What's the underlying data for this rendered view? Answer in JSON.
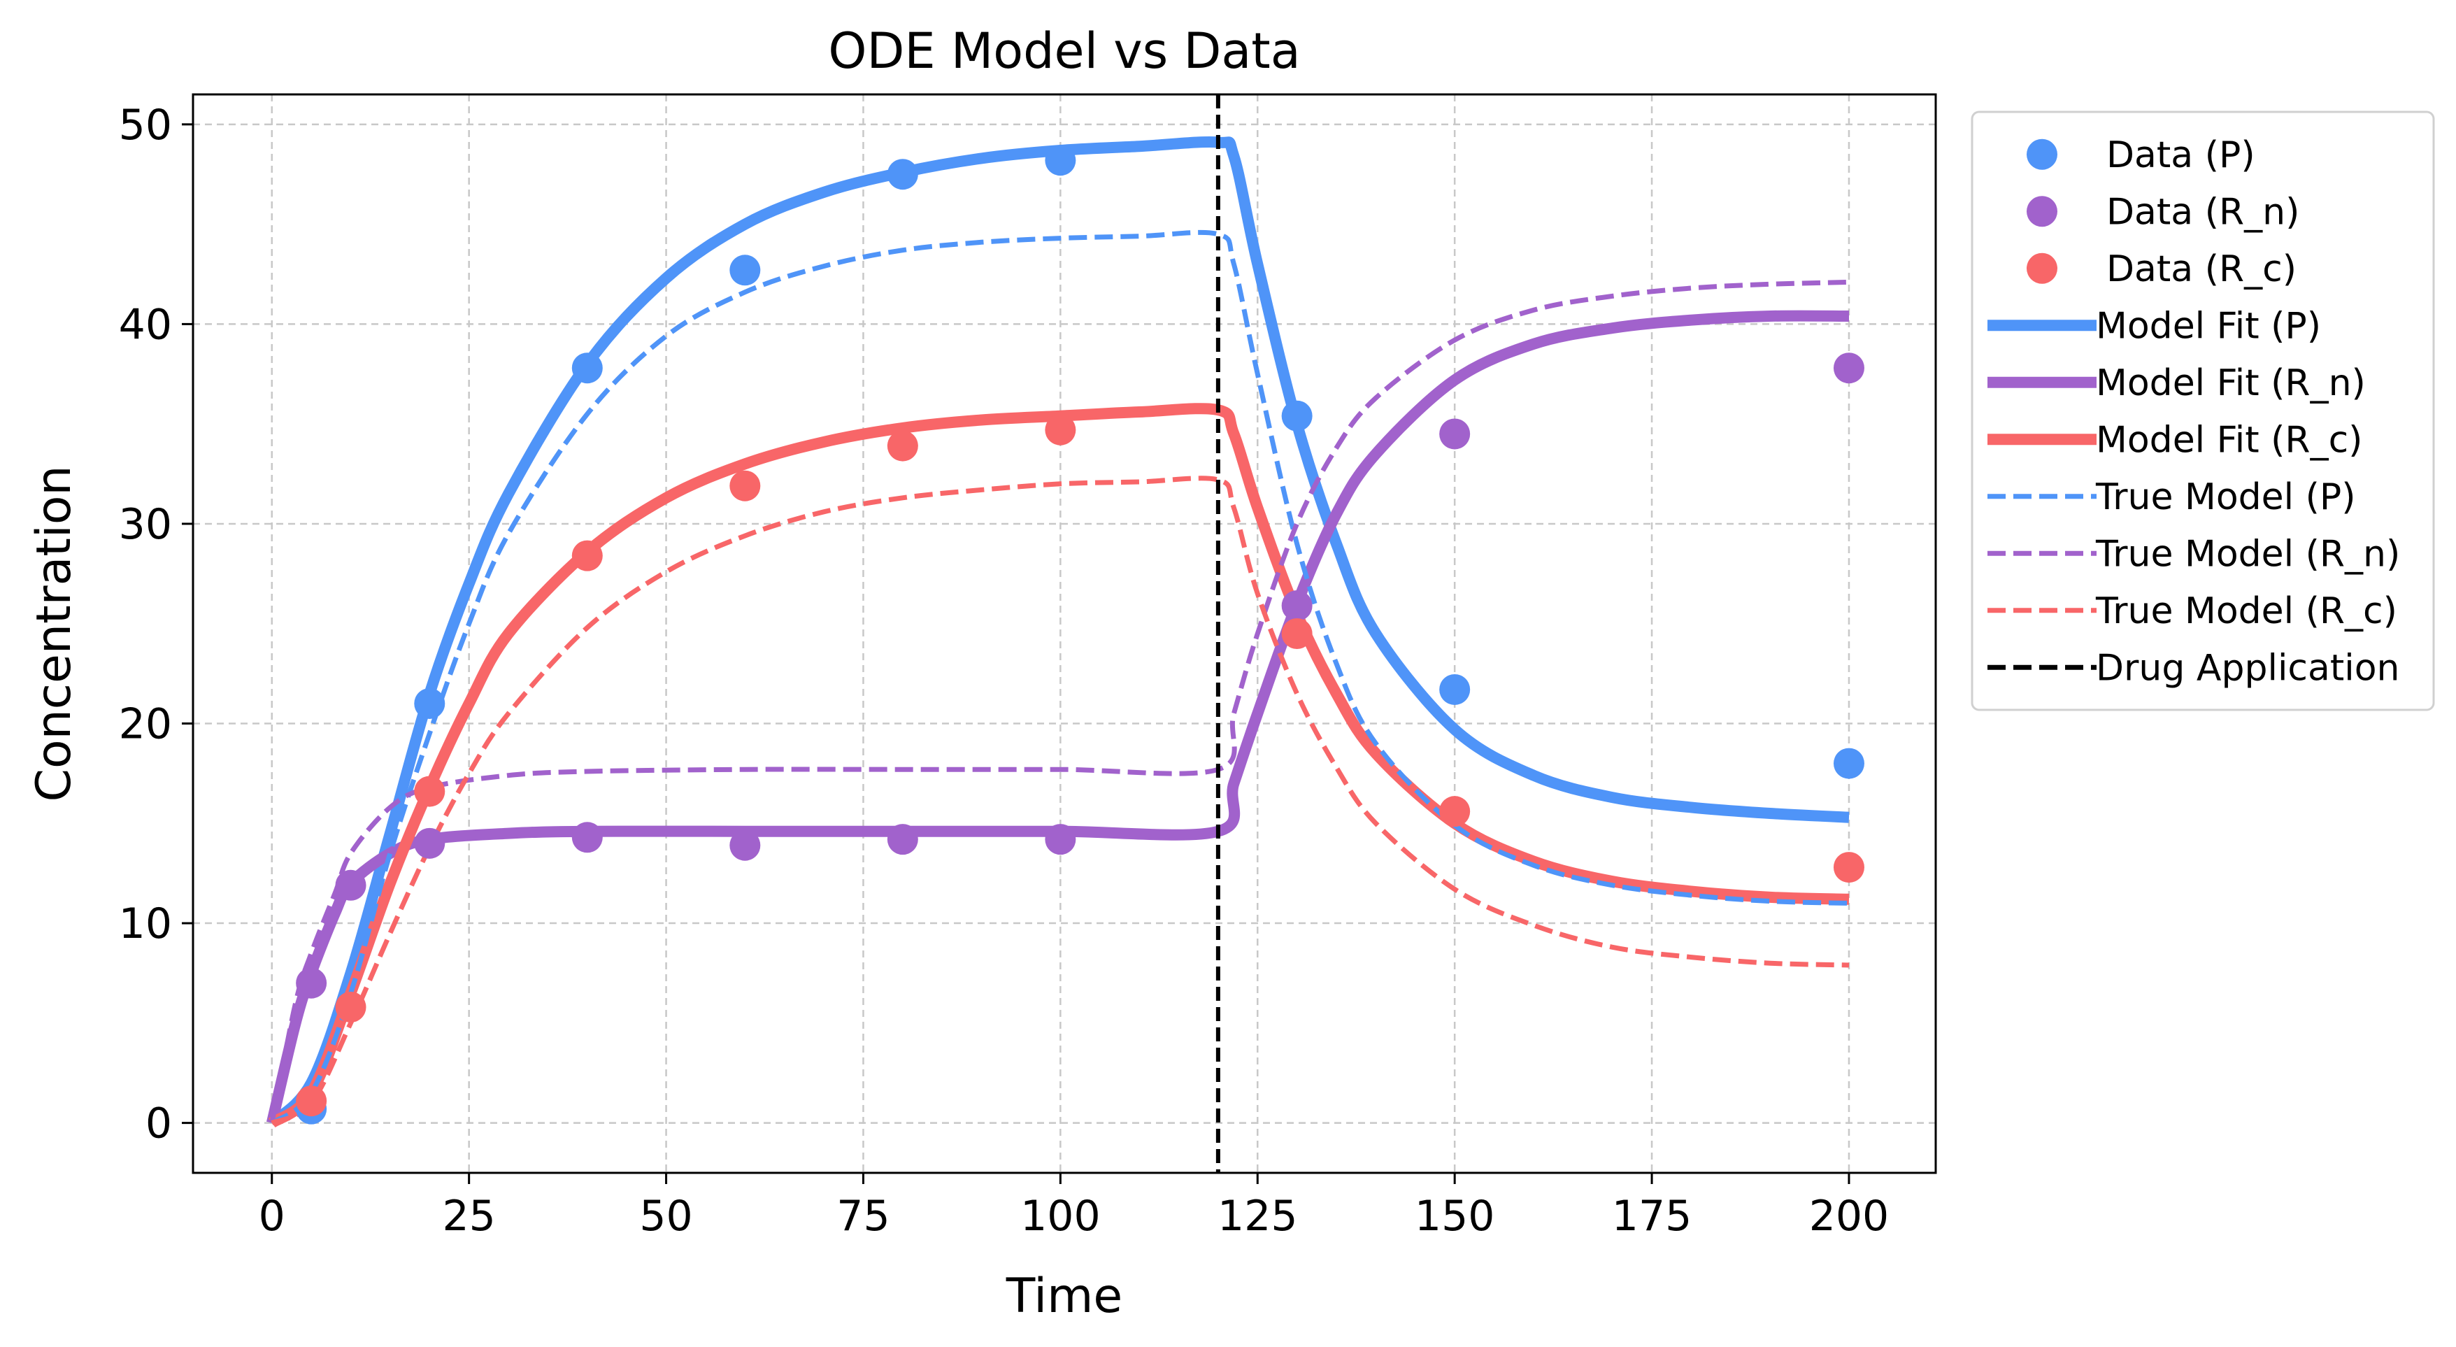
{
  "chart_data": {
    "type": "line",
    "title": "ODE Model vs Data",
    "xlabel": "Time",
    "ylabel": "Concentration",
    "xlim": [
      -10,
      211
    ],
    "ylim": [
      -2.5,
      51.5
    ],
    "xticks": [
      0,
      25,
      50,
      75,
      100,
      125,
      150,
      175,
      200
    ],
    "yticks": [
      0,
      10,
      20,
      30,
      40,
      50
    ],
    "grid": true,
    "legend_position": "outside-right-top",
    "drug_application_time": 120,
    "colors": {
      "P": "#4f94f8",
      "R_n": "#a162cc",
      "R_c": "#f86668",
      "drug": "#000000"
    },
    "data_series": [
      {
        "name": "Data (P)",
        "color": "#4f94f8",
        "x": [
          5,
          20,
          40,
          60,
          80,
          100,
          130,
          150,
          200
        ],
        "y": [
          0.7,
          21.0,
          37.8,
          42.7,
          47.5,
          48.2,
          35.4,
          21.7,
          18.0
        ]
      },
      {
        "name": "Data (R_n)",
        "color": "#a162cc",
        "x": [
          5,
          10,
          20,
          40,
          60,
          80,
          100,
          130,
          150,
          200
        ],
        "y": [
          7.0,
          11.9,
          14.0,
          14.3,
          13.9,
          14.2,
          14.2,
          25.9,
          34.5,
          37.8
        ]
      },
      {
        "name": "Data (R_c)",
        "color": "#f86668",
        "x": [
          5,
          10,
          20,
          40,
          60,
          80,
          100,
          130,
          150,
          200
        ],
        "y": [
          1.1,
          5.8,
          16.6,
          28.4,
          31.9,
          33.9,
          34.7,
          24.5,
          15.6,
          12.8
        ]
      }
    ],
    "line_series": [
      {
        "name": "Model Fit (P)",
        "color": "#4f94f8",
        "style": "solid",
        "x": [
          0,
          5,
          10,
          15,
          20,
          25,
          30,
          40,
          50,
          60,
          70,
          80,
          90,
          100,
          110,
          120,
          122,
          125,
          130,
          135,
          140,
          150,
          160,
          170,
          180,
          190,
          200
        ],
        "y": [
          0,
          2.0,
          7.5,
          14.5,
          21.5,
          27.0,
          31.5,
          38.0,
          42.3,
          45.0,
          46.6,
          47.6,
          48.3,
          48.7,
          48.9,
          49.1,
          48.4,
          43.0,
          35.0,
          29.0,
          24.5,
          19.7,
          17.4,
          16.3,
          15.8,
          15.5,
          15.3
        ]
      },
      {
        "name": "Model Fit (R_n)",
        "color": "#a162cc",
        "style": "solid",
        "x": [
          0,
          3,
          5,
          8,
          10,
          15,
          20,
          30,
          40,
          60,
          80,
          100,
          120,
          122,
          125,
          130,
          135,
          140,
          150,
          160,
          170,
          180,
          190,
          200
        ],
        "y": [
          0,
          5.0,
          7.5,
          10.5,
          12.0,
          13.5,
          14.2,
          14.5,
          14.6,
          14.6,
          14.6,
          14.6,
          14.6,
          17.0,
          20.5,
          26.0,
          30.5,
          33.5,
          37.2,
          39.0,
          39.8,
          40.2,
          40.4,
          40.4
        ]
      },
      {
        "name": "Model Fit (R_c)",
        "color": "#f86668",
        "style": "solid",
        "x": [
          0,
          5,
          10,
          15,
          20,
          25,
          30,
          40,
          50,
          60,
          70,
          80,
          90,
          100,
          110,
          120,
          122,
          125,
          130,
          135,
          140,
          150,
          160,
          170,
          180,
          190,
          200
        ],
        "y": [
          0,
          1.5,
          6.5,
          12.0,
          16.8,
          21.0,
          24.5,
          28.6,
          31.3,
          33.0,
          34.1,
          34.8,
          35.2,
          35.4,
          35.6,
          35.7,
          34.5,
          30.8,
          25.5,
          21.5,
          18.5,
          15.0,
          13.1,
          12.1,
          11.6,
          11.3,
          11.2
        ]
      },
      {
        "name": "True Model (P)",
        "color": "#4f94f8",
        "style": "dashed",
        "x": [
          0,
          5,
          10,
          15,
          20,
          25,
          30,
          40,
          50,
          60,
          70,
          80,
          90,
          100,
          110,
          120,
          122,
          125,
          130,
          135,
          140,
          150,
          160,
          170,
          180,
          190,
          200
        ],
        "y": [
          0,
          1.5,
          6.5,
          13.5,
          19.5,
          25.0,
          29.5,
          35.5,
          39.4,
          41.6,
          42.9,
          43.7,
          44.1,
          44.3,
          44.4,
          44.5,
          43.0,
          37.5,
          29.0,
          23.0,
          19.0,
          14.9,
          12.9,
          11.9,
          11.4,
          11.1,
          11.0
        ]
      },
      {
        "name": "True Model (R_n)",
        "color": "#a162cc",
        "style": "dashed",
        "x": [
          0,
          3,
          5,
          8,
          10,
          15,
          20,
          30,
          40,
          60,
          80,
          100,
          120,
          122,
          125,
          130,
          135,
          140,
          150,
          160,
          170,
          180,
          190,
          200
        ],
        "y": [
          0,
          6.0,
          8.5,
          11.5,
          13.5,
          15.8,
          16.8,
          17.4,
          17.6,
          17.7,
          17.7,
          17.7,
          17.7,
          20.5,
          24.5,
          30.0,
          33.8,
          36.3,
          39.2,
          40.7,
          41.4,
          41.8,
          42.0,
          42.1
        ]
      },
      {
        "name": "True Model (R_c)",
        "color": "#f86668",
        "style": "dashed",
        "x": [
          0,
          5,
          10,
          15,
          20,
          25,
          30,
          40,
          50,
          60,
          70,
          80,
          90,
          100,
          110,
          120,
          122,
          125,
          130,
          135,
          140,
          150,
          160,
          170,
          180,
          190,
          200
        ],
        "y": [
          0,
          1.0,
          5.0,
          9.5,
          13.8,
          17.5,
          20.5,
          24.8,
          27.6,
          29.4,
          30.6,
          31.3,
          31.7,
          32.0,
          32.1,
          32.2,
          30.8,
          26.5,
          21.5,
          17.8,
          15.0,
          11.7,
          9.9,
          8.8,
          8.3,
          8.0,
          7.9
        ]
      }
    ],
    "legend_entries": [
      {
        "label": "Data (P)",
        "kind": "marker",
        "color": "#4f94f8"
      },
      {
        "label": "Data (R_n)",
        "kind": "marker",
        "color": "#a162cc"
      },
      {
        "label": "Data (R_c)",
        "kind": "marker",
        "color": "#f86668"
      },
      {
        "label": "Model Fit (P)",
        "kind": "solid",
        "color": "#4f94f8"
      },
      {
        "label": "Model Fit (R_n)",
        "kind": "solid",
        "color": "#a162cc"
      },
      {
        "label": "Model Fit (R_c)",
        "kind": "solid",
        "color": "#f86668"
      },
      {
        "label": "True Model (P)",
        "kind": "dashed",
        "color": "#4f94f8"
      },
      {
        "label": "True Model (R_n)",
        "kind": "dashed",
        "color": "#a162cc"
      },
      {
        "label": "True Model (R_c)",
        "kind": "dashed",
        "color": "#f86668"
      },
      {
        "label": "Drug Application",
        "kind": "dashed",
        "color": "#000000"
      }
    ]
  }
}
